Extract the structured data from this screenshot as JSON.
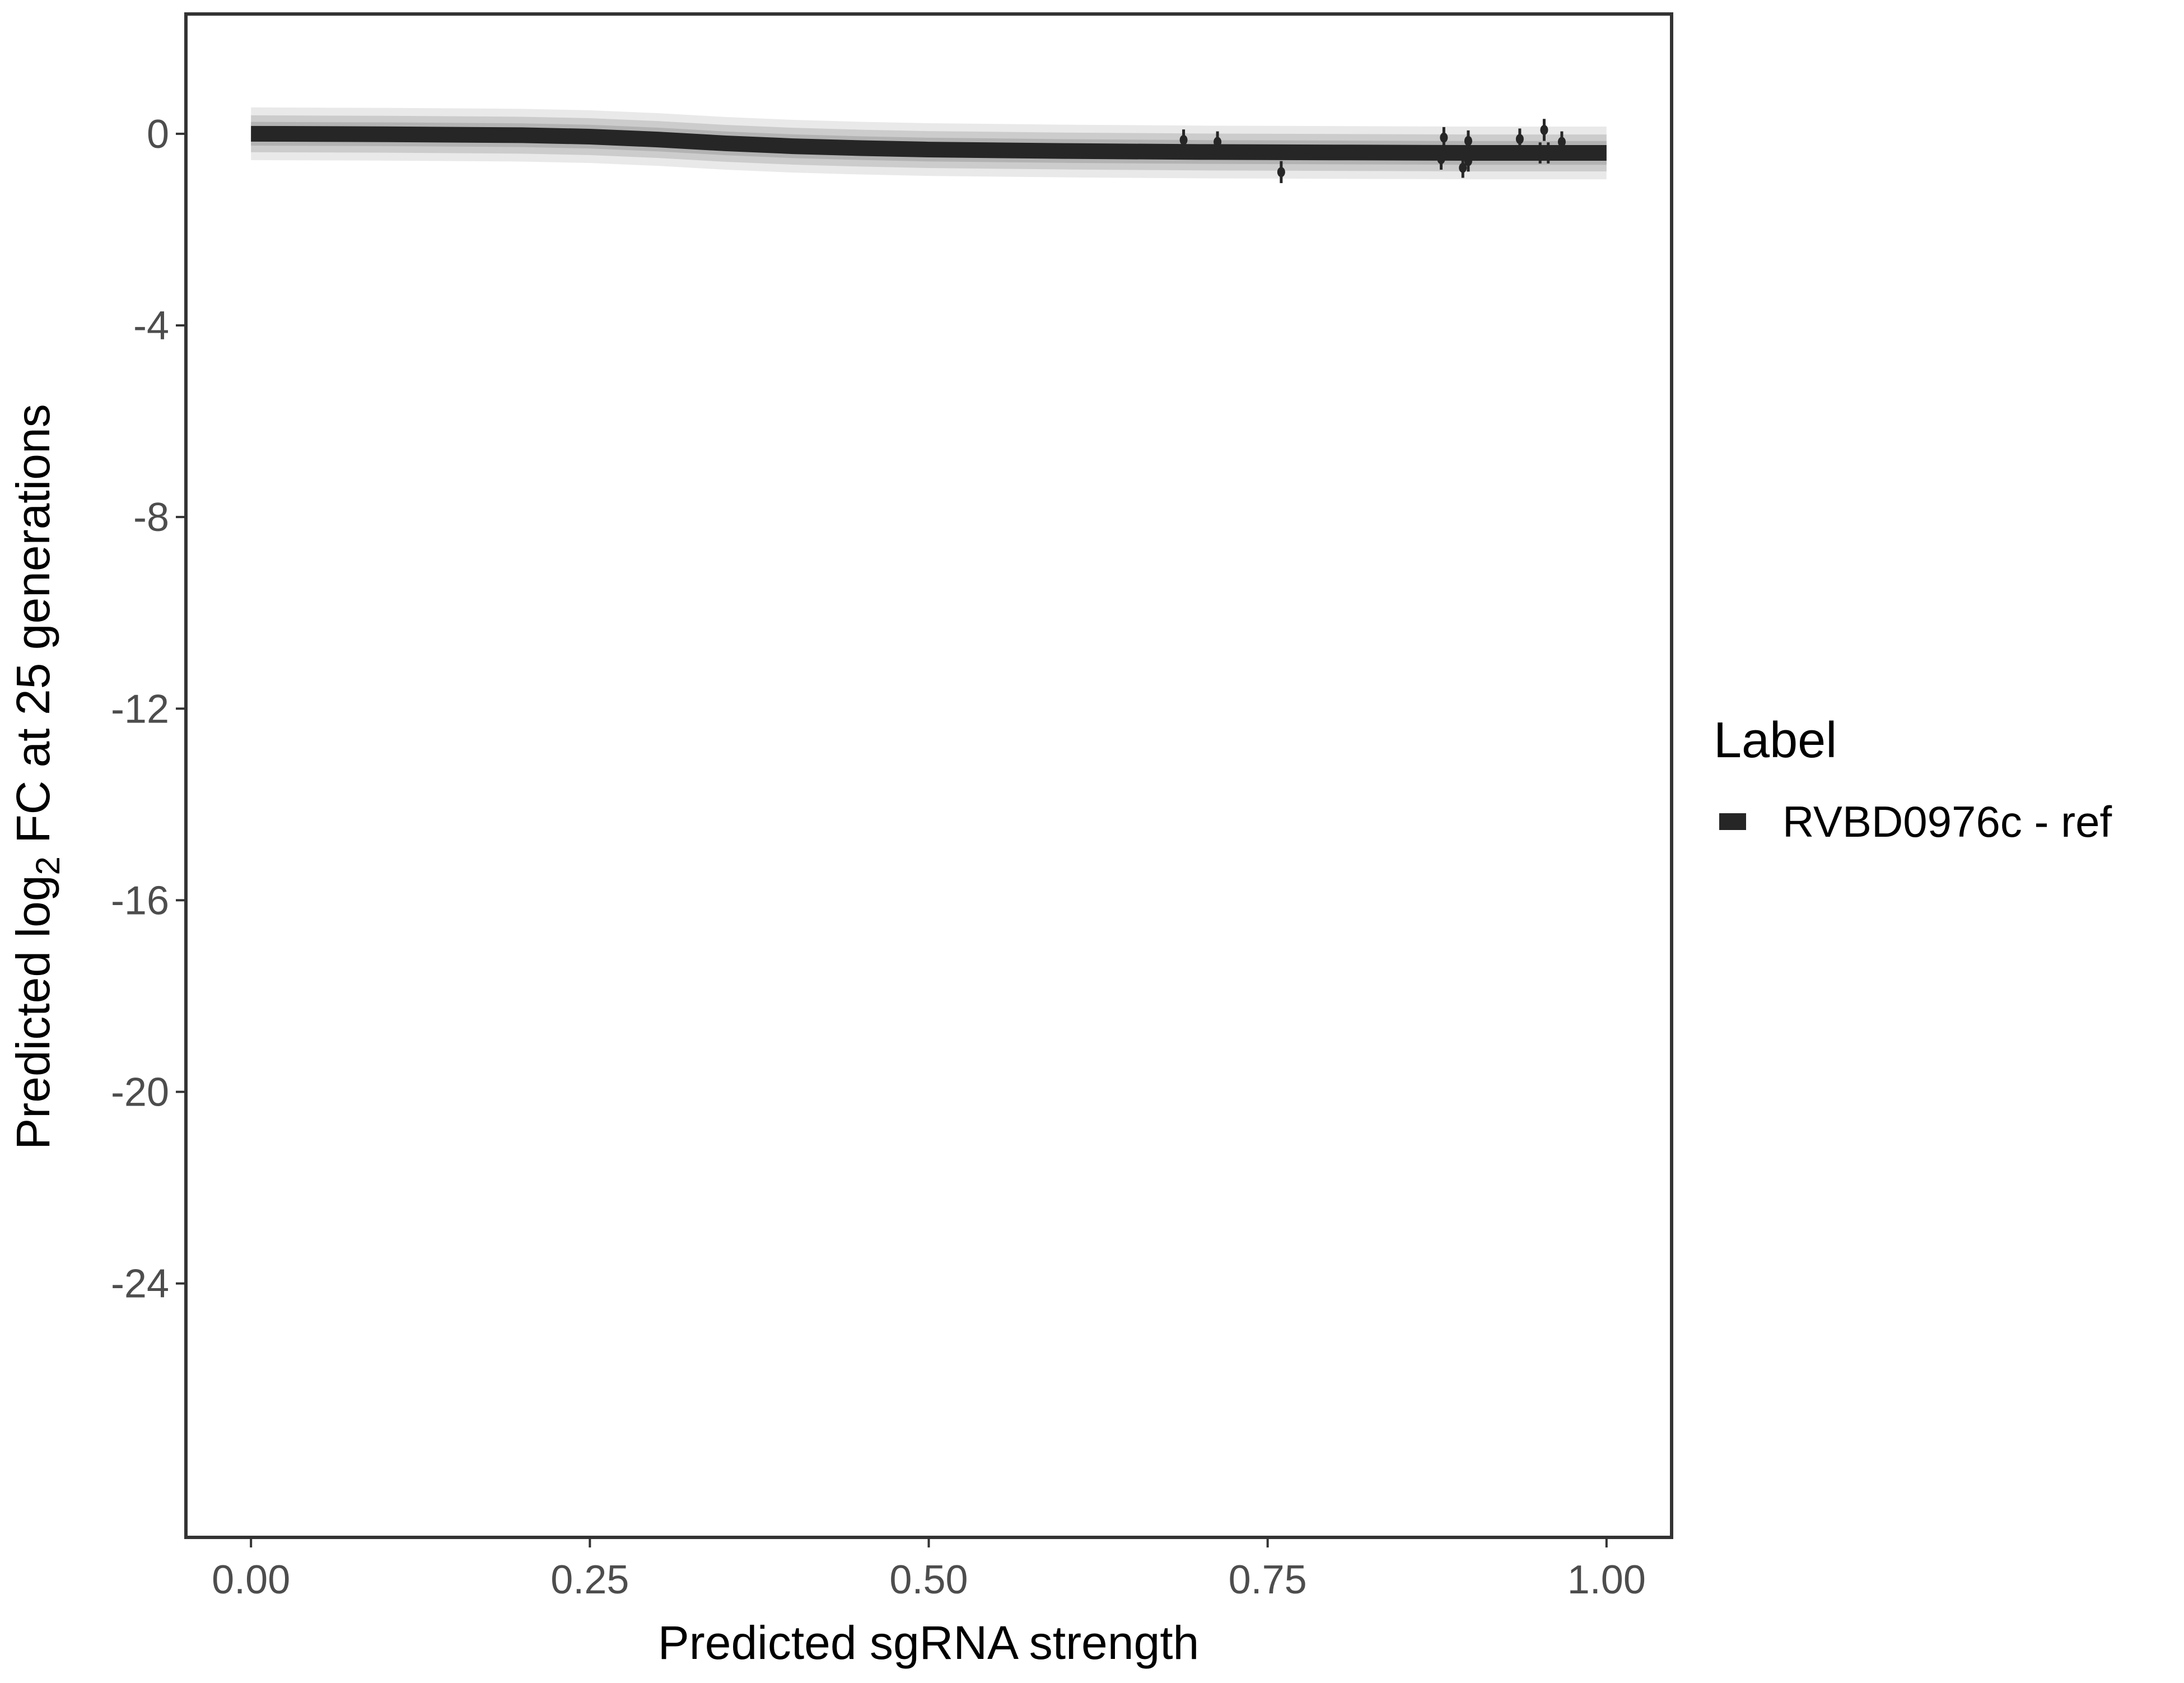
{
  "chart_data": {
    "type": "line",
    "title": "",
    "xlabel": "Predicted sgRNA strength",
    "ylabel_parts": [
      "Predicted  log",
      "2",
      " FC at 25 generations"
    ],
    "xlim": [
      -0.048,
      1.048
    ],
    "ylim": [
      -29.3,
      2.5
    ],
    "x_ticks": [
      0,
      0.25,
      0.5,
      0.75,
      1
    ],
    "x_tick_labels": [
      "0.00",
      "0.25",
      "0.50",
      "0.75",
      "1.00"
    ],
    "y_ticks": [
      0,
      -4,
      -8,
      -12,
      -16,
      -20,
      -24
    ],
    "y_tick_labels": [
      "0",
      "-4",
      "-8",
      "-12",
      "-16",
      "-20",
      "-24"
    ],
    "grid": false,
    "legend": {
      "title": "Label",
      "placement": "right",
      "entries": [
        "RVBD0976c - ref"
      ]
    },
    "colors": {
      "line": "#262626",
      "ribbon": "#a8a8a8",
      "points": "#262626",
      "axis": "#333333",
      "tick_text": "#4d4d4d"
    },
    "series": [
      {
        "name": "RVBD0976c - ref",
        "fit_curve": {
          "x": [
            0,
            0.1,
            0.2,
            0.25,
            0.3,
            0.35,
            0.4,
            0.45,
            0.5,
            0.6,
            0.7,
            0.8,
            0.9,
            1.0
          ],
          "y": [
            0,
            -0.01,
            -0.03,
            -0.06,
            -0.12,
            -0.2,
            -0.26,
            -0.3,
            -0.33,
            -0.36,
            -0.38,
            -0.39,
            -0.4,
            -0.4
          ],
          "ribbon_halfwidth": 0.55
        },
        "points": [
          {
            "x": 0.688,
            "y": -0.13,
            "err": 0.22
          },
          {
            "x": 0.713,
            "y": -0.17,
            "err": 0.22
          },
          {
            "x": 0.76,
            "y": -0.8,
            "err": 0.23
          },
          {
            "x": 0.878,
            "y": -0.53,
            "err": 0.22
          },
          {
            "x": 0.88,
            "y": -0.08,
            "err": 0.22
          },
          {
            "x": 0.894,
            "y": -0.71,
            "err": 0.21
          },
          {
            "x": 0.898,
            "y": -0.15,
            "err": 0.22
          },
          {
            "x": 0.898,
            "y": -0.57,
            "err": 0.22
          },
          {
            "x": 0.936,
            "y": -0.11,
            "err": 0.22
          },
          {
            "x": 0.951,
            "y": -0.4,
            "err": 0.22
          },
          {
            "x": 0.954,
            "y": 0.08,
            "err": 0.23
          },
          {
            "x": 0.957,
            "y": -0.4,
            "err": 0.22
          },
          {
            "x": 0.967,
            "y": -0.17,
            "err": 0.22
          }
        ]
      }
    ]
  }
}
